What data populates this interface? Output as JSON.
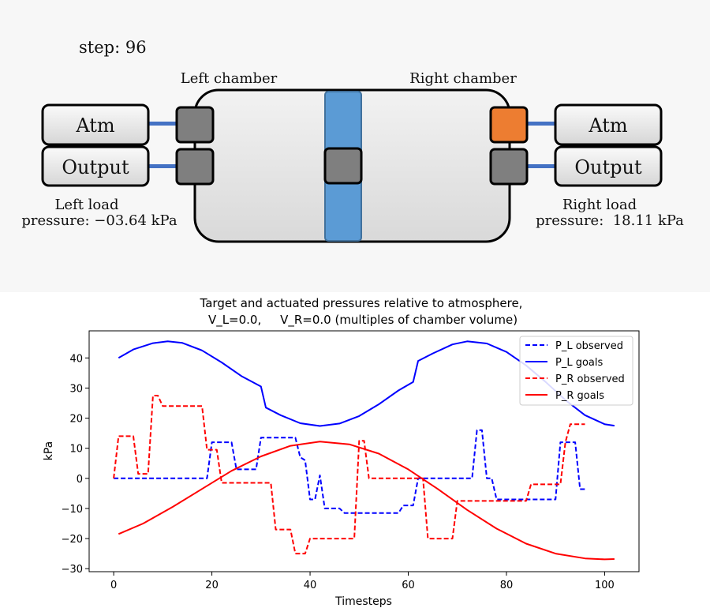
{
  "schematic": {
    "step_text": "step: 96",
    "left_chamber_label": "Left chamber",
    "right_chamber_label": "Right chamber",
    "left_atm_label": "Atm",
    "left_output_label": "Output",
    "right_atm_label": "Atm",
    "right_output_label": "Output",
    "left_load_title": "Left load",
    "left_load_pressure": "pressure: −03.64 kPa",
    "right_load_title": "Right load",
    "right_load_pressure": "pressure:  18.11 kPa",
    "colors": {
      "chamber_fill": "#e6e6e6",
      "piston": "#5b9bd5",
      "valve_closed": "#7f7f7f",
      "valve_open": "#ed7d31",
      "pipe": "#4472c4"
    },
    "valves": {
      "left_atm": "closed",
      "left_output": "closed",
      "piston_valve": "closed",
      "right_atm": "open",
      "right_output": "closed"
    }
  },
  "chart_data": {
    "type": "line",
    "title_line1": "Target and actuated pressures relative to atmosphere,",
    "title_line2": "V_L=0.0,     V_R=0.0 (multiples of chamber volume)",
    "xlabel": "Timesteps",
    "ylabel": "kPa",
    "xlim": [
      -5,
      107
    ],
    "ylim": [
      -31,
      49
    ],
    "xticks": [
      "0",
      "20",
      "40",
      "60",
      "80",
      "100"
    ],
    "yticks": [
      "40",
      "30",
      "20",
      "10",
      "0",
      "−10",
      "−20",
      "−30"
    ],
    "legend_position": "top-right",
    "series": [
      {
        "name": "P_L observed",
        "color": "#0000ff",
        "style": "dashed",
        "points": [
          [
            0,
            0
          ],
          [
            18,
            0
          ],
          [
            19,
            0
          ],
          [
            20,
            12
          ],
          [
            24,
            12
          ],
          [
            25,
            3
          ],
          [
            29,
            3
          ],
          [
            30,
            13.5
          ],
          [
            37,
            13.5
          ],
          [
            38,
            7
          ],
          [
            39,
            6
          ],
          [
            40,
            -7
          ],
          [
            41,
            -7
          ],
          [
            42,
            1
          ],
          [
            43,
            -10
          ],
          [
            46,
            -10
          ],
          [
            47,
            -11.5
          ],
          [
            58,
            -11.5
          ],
          [
            59,
            -9
          ],
          [
            61,
            -9
          ],
          [
            62,
            0
          ],
          [
            73,
            0
          ],
          [
            74,
            16
          ],
          [
            75,
            16
          ],
          [
            76,
            0
          ],
          [
            77,
            0
          ],
          [
            78,
            -7
          ],
          [
            90,
            -7
          ],
          [
            91,
            12
          ],
          [
            94,
            12
          ],
          [
            95,
            -3.6
          ],
          [
            96,
            -3.6
          ]
        ]
      },
      {
        "name": "P_L goals",
        "color": "#0000ff",
        "style": "solid",
        "points": [
          [
            1,
            40
          ],
          [
            4,
            42.8
          ],
          [
            8,
            44.9
          ],
          [
            11,
            45.5
          ],
          [
            14,
            45
          ],
          [
            18,
            42.5
          ],
          [
            22,
            38.5
          ],
          [
            26,
            34
          ],
          [
            30,
            30.5
          ],
          [
            31,
            23.5
          ],
          [
            34,
            21
          ],
          [
            38,
            18.3
          ],
          [
            42,
            17.4
          ],
          [
            46,
            18.2
          ],
          [
            50,
            20.7
          ],
          [
            54,
            24.6
          ],
          [
            58,
            29.2
          ],
          [
            61,
            32
          ],
          [
            62,
            39
          ],
          [
            65,
            41.5
          ],
          [
            69,
            44.5
          ],
          [
            72,
            45.5
          ],
          [
            76,
            44.8
          ],
          [
            80,
            42
          ],
          [
            84,
            37.5
          ],
          [
            88,
            32
          ],
          [
            92,
            26
          ],
          [
            96,
            21
          ],
          [
            100,
            18
          ],
          [
            102,
            17.5
          ]
        ]
      },
      {
        "name": "P_R observed",
        "color": "#ff0000",
        "style": "dashed",
        "points": [
          [
            0,
            0
          ],
          [
            1,
            14
          ],
          [
            4,
            14
          ],
          [
            5,
            1.5
          ],
          [
            7,
            1.5
          ],
          [
            8,
            27.5
          ],
          [
            9,
            27.5
          ],
          [
            10,
            24
          ],
          [
            18,
            24
          ],
          [
            19,
            9.5
          ],
          [
            21,
            9.5
          ],
          [
            22,
            -1.5
          ],
          [
            32,
            -1.5
          ],
          [
            33,
            -17
          ],
          [
            36,
            -17
          ],
          [
            37,
            -25
          ],
          [
            39,
            -25
          ],
          [
            40,
            -20
          ],
          [
            49,
            -20
          ],
          [
            50,
            12.5
          ],
          [
            51,
            12.5
          ],
          [
            52,
            0
          ],
          [
            63,
            0
          ],
          [
            64,
            -20
          ],
          [
            69,
            -20
          ],
          [
            70,
            -7.5
          ],
          [
            84,
            -7.5
          ],
          [
            85,
            -2
          ],
          [
            91,
            -2
          ],
          [
            92,
            12
          ],
          [
            93,
            18
          ],
          [
            96,
            18
          ]
        ]
      },
      {
        "name": "P_R goals",
        "color": "#ff0000",
        "style": "solid",
        "points": [
          [
            1,
            -18.5
          ],
          [
            6,
            -15
          ],
          [
            12,
            -9.5
          ],
          [
            18,
            -3.5
          ],
          [
            24,
            2.5
          ],
          [
            30,
            7.3
          ],
          [
            36,
            10.8
          ],
          [
            42,
            12.2
          ],
          [
            48,
            11.3
          ],
          [
            54,
            8.2
          ],
          [
            60,
            3
          ],
          [
            66,
            -3.5
          ],
          [
            72,
            -10.5
          ],
          [
            78,
            -16.7
          ],
          [
            84,
            -21.7
          ],
          [
            90,
            -25
          ],
          [
            96,
            -26.6
          ],
          [
            100,
            -26.9
          ],
          [
            102,
            -26.8
          ]
        ]
      }
    ]
  }
}
